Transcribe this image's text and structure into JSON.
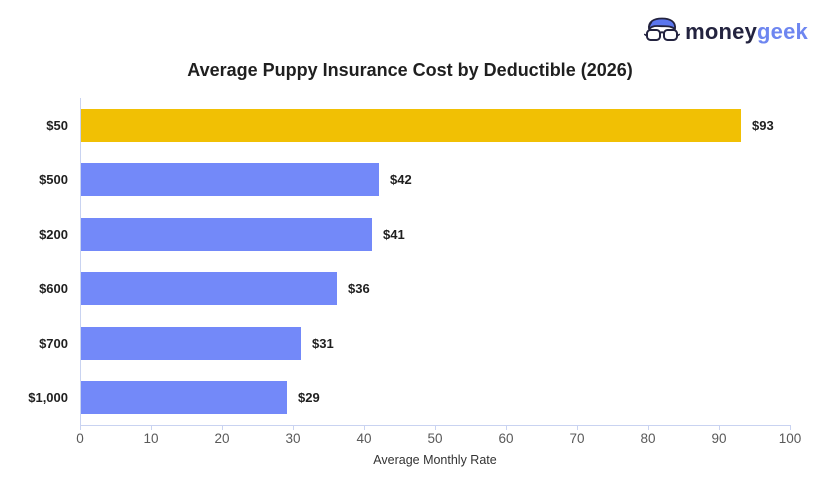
{
  "logo": {
    "brand_primary": "money",
    "brand_secondary": "geek",
    "icon": "geek-face-icon",
    "primary_color": "#23233f",
    "secondary_color": "#6e86f0"
  },
  "chart_data": {
    "type": "bar",
    "orientation": "horizontal",
    "title": "Average Puppy Insurance Cost by Deductible (2026)",
    "categories": [
      "$50",
      "$500",
      "$200",
      "$600",
      "$700",
      "$1,000"
    ],
    "values": [
      93,
      42,
      41,
      36,
      31,
      29
    ],
    "value_labels": [
      "$93",
      "$42",
      "$41",
      "$36",
      "$31",
      "$29"
    ],
    "xlabel": "Average Monthly Rate",
    "ylabel": "",
    "xlim": [
      0,
      100
    ],
    "xticks": [
      0,
      10,
      20,
      30,
      40,
      50,
      60,
      70,
      80,
      90,
      100
    ],
    "grid": false,
    "legend": false,
    "highlight_color": "#f1c004",
    "default_color": "#7389f9",
    "bar_colors": [
      "#f1c004",
      "#7389f9",
      "#7389f9",
      "#7389f9",
      "#7389f9",
      "#7389f9"
    ],
    "axis_color": "#c9d3f1",
    "tick_label_color": "#595959"
  }
}
